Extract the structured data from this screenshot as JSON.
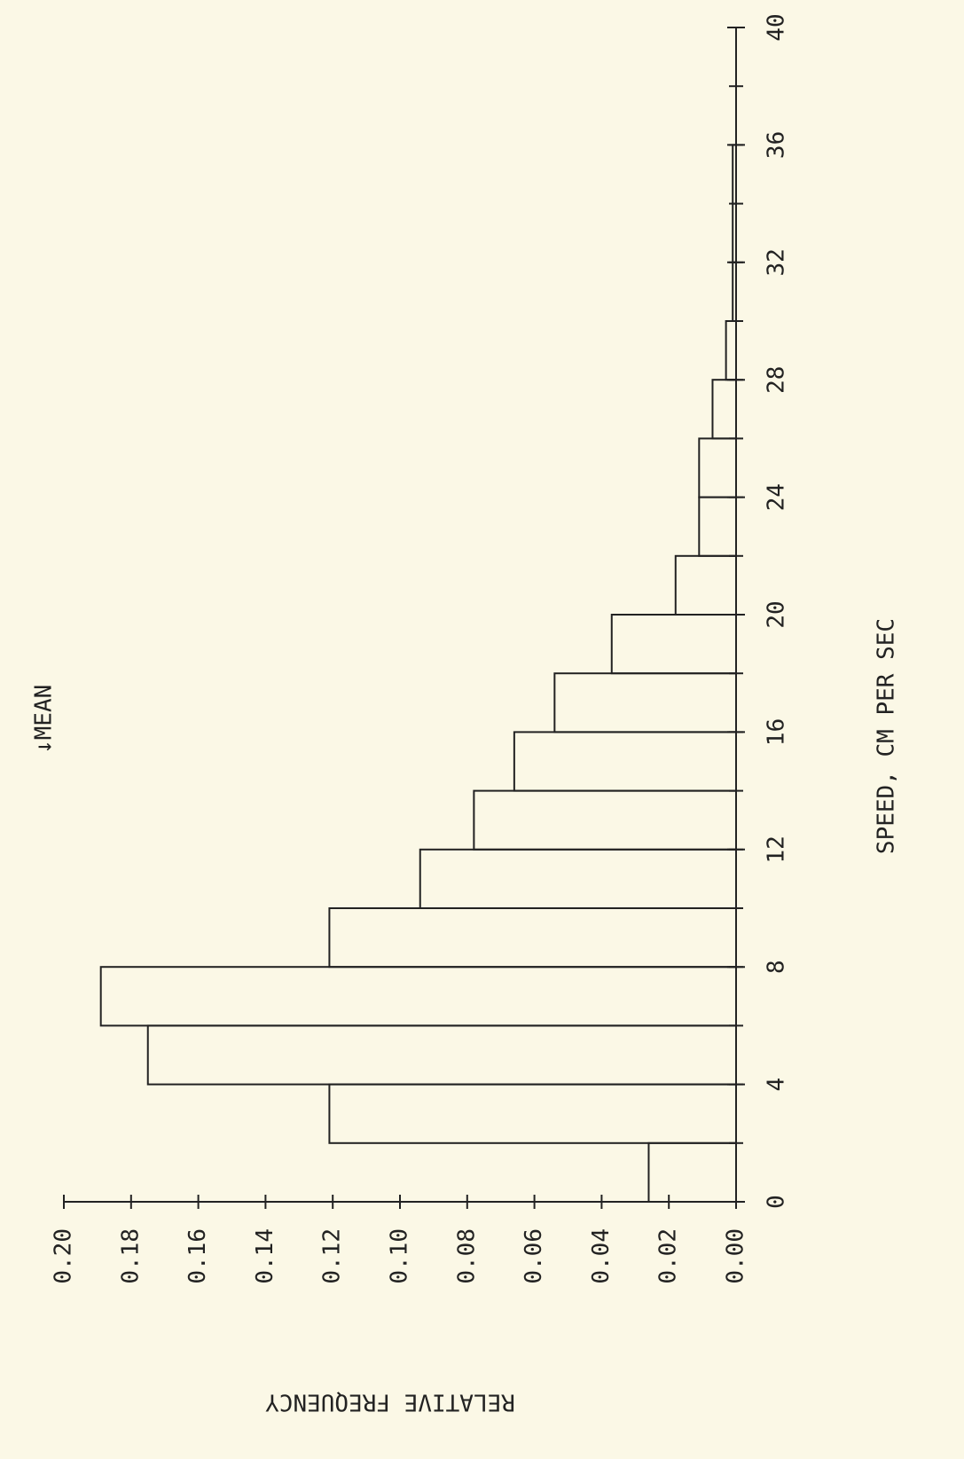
{
  "chart_data": {
    "type": "histogram",
    "xlabel": "SPEED, CM PER SEC",
    "ylabel": "RELATIVE FREQUENCY",
    "annotation": "↓MEAN",
    "bins": [
      0,
      2,
      4,
      6,
      8,
      10,
      12,
      14,
      16,
      18,
      20,
      22,
      24,
      26,
      28,
      30,
      32,
      34,
      36,
      38,
      40
    ],
    "values": [
      0.026,
      0.121,
      0.175,
      0.189,
      0.121,
      0.094,
      0.078,
      0.066,
      0.054,
      0.037,
      0.018,
      0.011,
      0.011,
      0.007,
      0.003,
      0.001,
      0.001,
      0.001,
      0,
      0
    ],
    "color": "#222222",
    "xlim": [
      0,
      40
    ],
    "xticks": [
      0,
      4,
      8,
      12,
      16,
      20,
      24,
      28,
      32,
      36,
      40
    ],
    "ylim": [
      0,
      0.2
    ],
    "yticks": [
      {
        "value": 0,
        "label": "0.00"
      },
      {
        "value": 0.02,
        "label": "0.02"
      },
      {
        "value": 0.04,
        "label": "0.04"
      },
      {
        "value": 0.06,
        "label": "0.06"
      },
      {
        "value": 0.08,
        "label": "0.08"
      },
      {
        "value": 0.1,
        "label": "0.10"
      },
      {
        "value": 0.12,
        "label": "0.12"
      },
      {
        "value": 0.14,
        "label": "0.14"
      },
      {
        "value": 0.16,
        "label": "0.16"
      },
      {
        "value": 0.18,
        "label": "0.18"
      },
      {
        "value": 0.2,
        "label": "0.20"
      }
    ]
  }
}
